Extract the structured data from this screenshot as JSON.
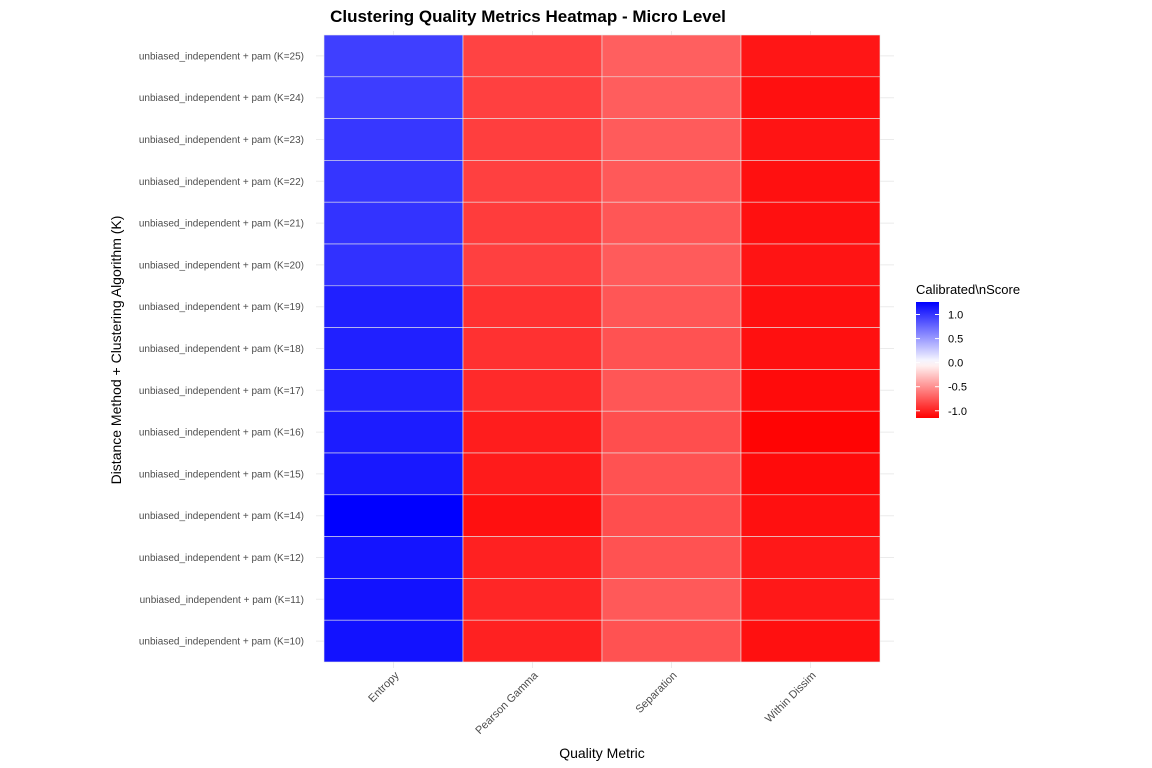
{
  "chart_data": {
    "type": "heatmap",
    "title": "Clustering Quality Metrics Heatmap - Micro Level",
    "xlabel": "Quality Metric",
    "ylabel": "Distance Method + Clustering Algorithm (K)",
    "x_categories": [
      "Entropy",
      "Pearson Gamma",
      "Separation",
      "Within Dissim"
    ],
    "y_categories": [
      "unbiased_independent + pam (K=25)",
      "unbiased_independent + pam (K=24)",
      "unbiased_independent + pam (K=23)",
      "unbiased_independent + pam (K=22)",
      "unbiased_independent + pam (K=21)",
      "unbiased_independent + pam (K=20)",
      "unbiased_independent + pam (K=19)",
      "unbiased_independent + pam (K=18)",
      "unbiased_independent + pam (K=17)",
      "unbiased_independent + pam (K=16)",
      "unbiased_independent + pam (K=15)",
      "unbiased_independent + pam (K=14)",
      "unbiased_independent + pam (K=12)",
      "unbiased_independent + pam (K=11)",
      "unbiased_independent + pam (K=10)"
    ],
    "values": [
      [
        0.95,
        -0.85,
        -0.72,
        -1.05
      ],
      [
        0.96,
        -0.86,
        -0.73,
        -1.08
      ],
      [
        0.99,
        -0.87,
        -0.74,
        -1.06
      ],
      [
        1.0,
        -0.86,
        -0.75,
        -1.08
      ],
      [
        1.01,
        -0.88,
        -0.76,
        -1.08
      ],
      [
        1.02,
        -0.86,
        -0.74,
        -1.06
      ],
      [
        1.1,
        -0.93,
        -0.76,
        -1.08
      ],
      [
        1.1,
        -0.93,
        -0.78,
        -1.08
      ],
      [
        1.09,
        -0.96,
        -0.76,
        -1.1
      ],
      [
        1.12,
        -1.02,
        -0.8,
        -1.13
      ],
      [
        1.14,
        -1.03,
        -0.78,
        -1.1
      ],
      [
        1.26,
        -1.08,
        -0.8,
        -1.08
      ],
      [
        1.16,
        -1.0,
        -0.78,
        -1.04
      ],
      [
        1.17,
        -0.98,
        -0.75,
        -1.04
      ],
      [
        1.17,
        -1.0,
        -0.78,
        -1.08
      ]
    ],
    "color_scale": {
      "low": "#ff0000",
      "mid": "#ffffff",
      "high": "#0000ff",
      "midpoint": 0.0,
      "limits": [
        -1.15,
        1.26
      ]
    },
    "legend": {
      "title": "Calibrated\\nScore",
      "breaks": [
        1.0,
        0.5,
        0.0,
        -0.5,
        -1.0
      ],
      "labels": [
        "1.0",
        "0.5",
        "0.0",
        "-0.5",
        "-1.0"
      ],
      "position": "right"
    },
    "grid": true
  }
}
